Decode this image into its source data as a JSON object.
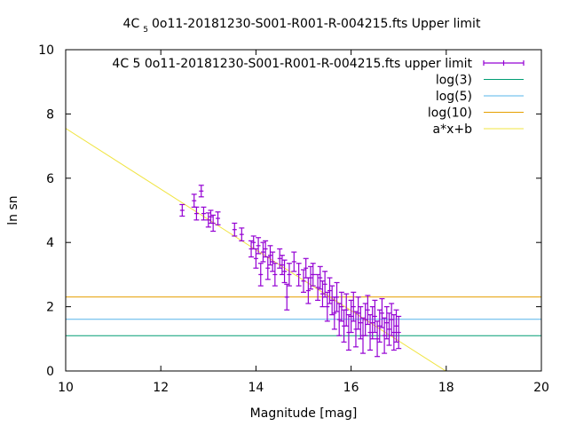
{
  "chart_data": {
    "type": "scatter",
    "title": {
      "prefix": "4C",
      "subscript": "5",
      "suffix": "0o11-20181230-S001-R001-R-004215.fts Upper limit"
    },
    "xlabel": "Magnitude [mag]",
    "ylabel": "ln sn",
    "xlim": [
      10,
      20
    ],
    "ylim": [
      0,
      10
    ],
    "xticks": [
      10,
      12,
      14,
      16,
      18,
      20
    ],
    "yticks": [
      0,
      2,
      4,
      6,
      8,
      10
    ],
    "grid": false,
    "legend_position": "top-right",
    "series": [
      {
        "name": "4C 5 0o11-20181230-S001-R001-R-004215.fts upper limit",
        "kind": "errorbars",
        "color": "#9400d3",
        "points": [
          [
            12.45,
            5.0,
            0.18
          ],
          [
            12.7,
            5.3,
            0.2
          ],
          [
            12.75,
            4.9,
            0.2
          ],
          [
            12.85,
            5.6,
            0.18
          ],
          [
            12.9,
            4.9,
            0.2
          ],
          [
            13.0,
            4.7,
            0.22
          ],
          [
            13.05,
            4.8,
            0.2
          ],
          [
            13.1,
            4.6,
            0.25
          ],
          [
            13.2,
            4.75,
            0.2
          ],
          [
            13.55,
            4.4,
            0.2
          ],
          [
            13.7,
            4.25,
            0.2
          ],
          [
            13.9,
            3.8,
            0.25
          ],
          [
            13.95,
            4.0,
            0.2
          ],
          [
            14.0,
            3.5,
            0.3
          ],
          [
            14.05,
            3.9,
            0.25
          ],
          [
            14.1,
            3.0,
            0.35
          ],
          [
            14.15,
            3.7,
            0.3
          ],
          [
            14.2,
            3.8,
            0.25
          ],
          [
            14.25,
            3.2,
            0.35
          ],
          [
            14.3,
            3.6,
            0.3
          ],
          [
            14.35,
            3.4,
            0.3
          ],
          [
            14.4,
            3.0,
            0.35
          ],
          [
            14.5,
            3.5,
            0.3
          ],
          [
            14.55,
            3.3,
            0.3
          ],
          [
            14.6,
            3.1,
            0.35
          ],
          [
            14.65,
            2.3,
            0.4
          ],
          [
            14.7,
            3.0,
            0.35
          ],
          [
            14.8,
            3.4,
            0.3
          ],
          [
            14.9,
            3.0,
            0.35
          ],
          [
            15.0,
            2.8,
            0.35
          ],
          [
            15.05,
            3.2,
            0.3
          ],
          [
            15.1,
            2.5,
            0.4
          ],
          [
            15.15,
            2.9,
            0.35
          ],
          [
            15.2,
            3.0,
            0.35
          ],
          [
            15.3,
            2.6,
            0.4
          ],
          [
            15.35,
            2.9,
            0.35
          ],
          [
            15.4,
            2.4,
            0.4
          ],
          [
            15.45,
            2.7,
            0.4
          ],
          [
            15.5,
            2.0,
            0.45
          ],
          [
            15.55,
            2.5,
            0.4
          ],
          [
            15.6,
            2.2,
            0.45
          ],
          [
            15.65,
            1.8,
            0.5
          ],
          [
            15.7,
            2.3,
            0.45
          ],
          [
            15.75,
            1.6,
            0.5
          ],
          [
            15.8,
            2.0,
            0.45
          ],
          [
            15.85,
            1.4,
            0.5
          ],
          [
            15.9,
            1.9,
            0.5
          ],
          [
            15.95,
            1.2,
            0.55
          ],
          [
            16.0,
            1.7,
            0.5
          ],
          [
            16.05,
            2.0,
            0.45
          ],
          [
            16.1,
            1.3,
            0.55
          ],
          [
            16.15,
            1.8,
            0.5
          ],
          [
            16.2,
            1.5,
            0.5
          ],
          [
            16.25,
            1.1,
            0.55
          ],
          [
            16.3,
            1.6,
            0.5
          ],
          [
            16.35,
            1.9,
            0.45
          ],
          [
            16.4,
            1.2,
            0.55
          ],
          [
            16.45,
            1.5,
            0.5
          ],
          [
            16.5,
            1.7,
            0.5
          ],
          [
            16.55,
            1.0,
            0.55
          ],
          [
            16.6,
            1.4,
            0.5
          ],
          [
            16.65,
            1.8,
            0.45
          ],
          [
            16.7,
            1.1,
            0.55
          ],
          [
            16.75,
            1.5,
            0.5
          ],
          [
            16.8,
            1.3,
            0.5
          ],
          [
            16.85,
            1.6,
            0.5
          ],
          [
            16.9,
            1.2,
            0.55
          ],
          [
            16.95,
            1.4,
            0.5
          ],
          [
            17.0,
            1.2,
            0.5
          ]
        ]
      },
      {
        "name": "log(3)",
        "kind": "hline",
        "color": "#009e73",
        "y": 1.0986
      },
      {
        "name": "log(5)",
        "kind": "hline",
        "color": "#56b4e9",
        "y": 1.6094
      },
      {
        "name": "log(10)",
        "kind": "hline",
        "color": "#e69f00",
        "y": 2.3026
      },
      {
        "name": "a*x+b",
        "kind": "fitline",
        "color": "#f0e442",
        "a": -0.945,
        "b": 17.0
      }
    ]
  }
}
